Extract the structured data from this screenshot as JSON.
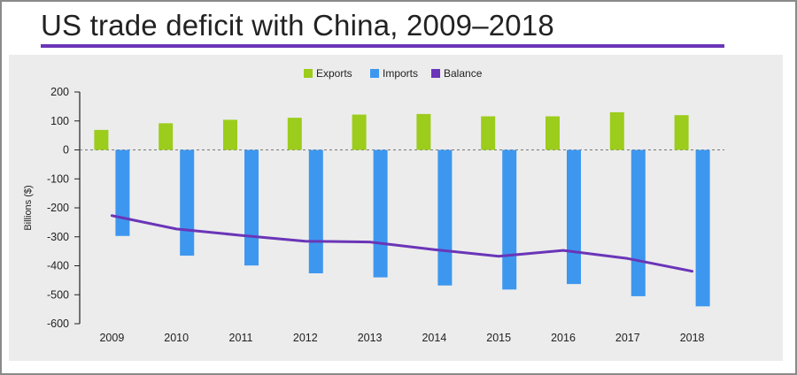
{
  "title": "US trade deficit with China, 2009–2018",
  "colors": {
    "exports": "#9ccc1c",
    "imports": "#3d97ef",
    "balance": "#6a35b8",
    "accent_rule": "#6a35b8"
  },
  "chart_data": {
    "type": "bar",
    "categories": [
      "2009",
      "2010",
      "2011",
      "2012",
      "2013",
      "2014",
      "2015",
      "2016",
      "2017",
      "2018"
    ],
    "series": [
      {
        "name": "Exports",
        "type": "bar",
        "values": [
          69,
          92,
          104,
          111,
          122,
          124,
          116,
          116,
          130,
          120
        ]
      },
      {
        "name": "Imports",
        "type": "bar",
        "values": [
          -297,
          -365,
          -399,
          -426,
          -440,
          -468,
          -482,
          -463,
          -505,
          -540
        ]
      },
      {
        "name": "Balance",
        "type": "line",
        "values": [
          -227,
          -273,
          -295,
          -315,
          -318,
          -344,
          -367,
          -347,
          -375,
          -419
        ]
      }
    ],
    "ylabel": "Billions ($)",
    "xlabel": "",
    "ylim": [
      -600,
      200
    ],
    "yticks": [
      "200",
      "100",
      "0",
      "-100",
      "-200",
      "-300",
      "-400",
      "-500",
      "-600"
    ],
    "zero_line": "dashed",
    "legend": {
      "placement": "top-center",
      "entries": [
        "Exports",
        "Imports",
        "Balance"
      ]
    },
    "grid": false
  }
}
